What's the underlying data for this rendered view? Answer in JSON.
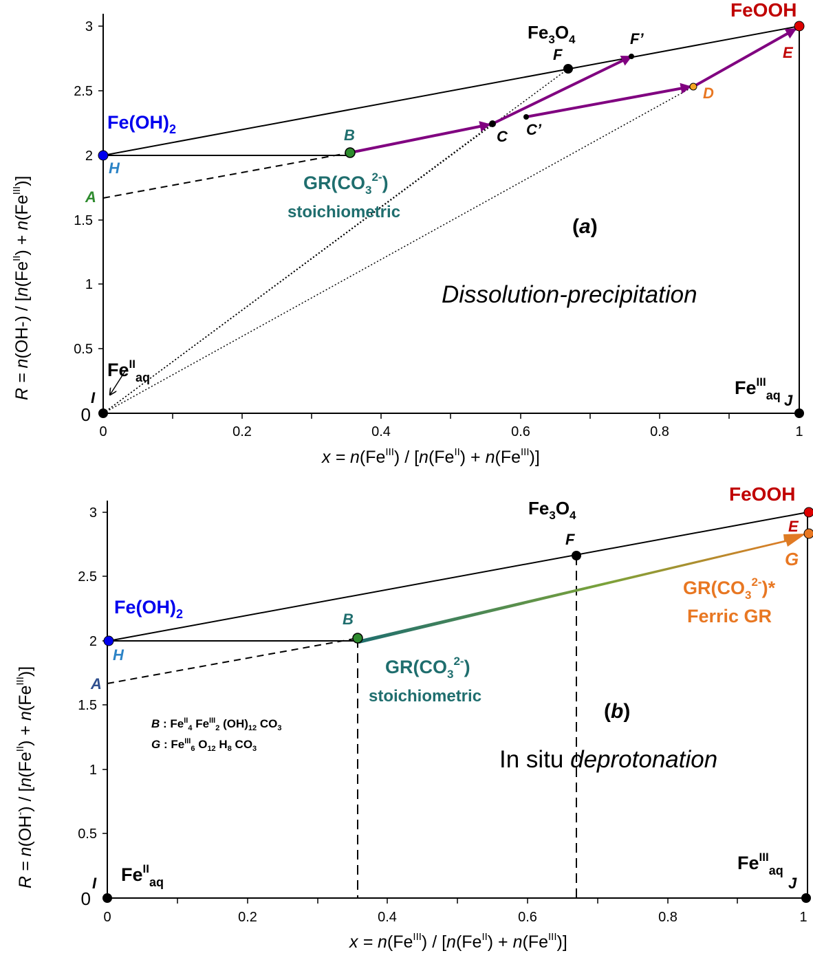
{
  "chart_data": [
    {
      "panel": "a",
      "type": "scatter",
      "title": "",
      "panel_label": "(a)",
      "mechanism": "Dissolution-precipitation",
      "xlabel": {
        "pre": "x = ",
        "n1": "n",
        "fe1": "(Fe",
        "sup1": "III",
        "mid": ") / [",
        "n2": "n",
        "fe2": "(Fe",
        "sup2": "II",
        "plus": ") + ",
        "n3": "n",
        "fe3": "(Fe",
        "sup3": "III",
        "end": ")]"
      },
      "ylabel": {
        "pre": "R = ",
        "n1": "n",
        "oh": "(OH-)",
        "mid": "  /  [",
        "n2": "n",
        "fe2": "(Fe",
        "sup2": "II",
        "plus": ") + ",
        "n3": "n",
        "fe3": "(Fe",
        "sup3": "III",
        "end": ")]"
      },
      "xlim": [
        0,
        1
      ],
      "ylim": [
        0,
        3.1
      ],
      "xticks": [
        "0",
        "0.2",
        "0.4",
        "0.6",
        "0.8",
        "1"
      ],
      "yticks": [
        "0",
        "0.5",
        "1",
        "1.5",
        "2",
        "2.5",
        "3"
      ],
      "points": [
        {
          "label": "H",
          "x": 0,
          "y": 2,
          "color": "#0000ee",
          "name": "Fe(OH)",
          "name_sub": "2"
        },
        {
          "label": "B",
          "x": 0.355,
          "y": 2.02,
          "color": "#2e8b2e",
          "name": "GR(CO",
          "name_sub": "3",
          "name_sup": "2-",
          "name_end": ")",
          "note": "stoichiometric"
        },
        {
          "label": "C",
          "x": 0.56,
          "y": 2.25,
          "color": "#000000"
        },
        {
          "label": "C’",
          "x": 0.607,
          "y": 2.3,
          "color": "#000000"
        },
        {
          "label": "D",
          "x": 0.848,
          "y": 2.53,
          "color": "#f5a623"
        },
        {
          "label": "E",
          "x": 1,
          "y": 3,
          "color": "#dd0000",
          "name": "FeOOH"
        },
        {
          "label": "F",
          "x": 0.667,
          "y": 2.67,
          "color": "#000000",
          "name": "Fe",
          "name_sub": "3",
          "name_mid": "O",
          "name_sub2": "4"
        },
        {
          "label": "F’",
          "x": 0.757,
          "y": 2.76,
          "color": "#000000"
        },
        {
          "label": "A",
          "x": 0,
          "y": 1.67,
          "color": "#2e8b2e"
        },
        {
          "label": "I",
          "x": 0,
          "y": 0,
          "color": "#000000",
          "name": "Fe",
          "name_sup": "II",
          "name_sub": "aq"
        },
        {
          "label": "J",
          "x": 1,
          "y": 0,
          "color": "#000000",
          "name": "Fe",
          "name_sup": "III",
          "name_sub": "aq"
        }
      ]
    },
    {
      "panel": "b",
      "type": "scatter",
      "title": "",
      "panel_label": "(b)",
      "mechanism_pre": "In situ ",
      "mechanism_it": "deprotonation",
      "xlabel": {
        "pre": "x = ",
        "n1": "n",
        "fe1": "(Fe",
        "sup1": "III",
        "mid": ") / [",
        "n2": "n",
        "fe2": "(Fe",
        "sup2": "II",
        "plus": ") + ",
        "n3": "n",
        "fe3": "(Fe",
        "sup3": "III",
        "end": ")]"
      },
      "ylabel": {
        "pre": "R = ",
        "n1": "n",
        "oh": "(OH",
        "sup_oh": "-",
        "oh_end": ")",
        "mid": "  /  [",
        "n2": "n",
        "fe2": "(Fe",
        "sup2": "II",
        "plus": ") + ",
        "n3": "n",
        "fe3": "(Fe",
        "sup3": "III",
        "end": ")]"
      },
      "xlim": [
        0,
        1
      ],
      "ylim": [
        0,
        3.1
      ],
      "xticks": [
        "0",
        "0.2",
        "0.4",
        "0.6",
        "0.8",
        "1"
      ],
      "yticks": [
        "0",
        "0.5",
        "1",
        "1.5",
        "2",
        "2.5",
        "3"
      ],
      "points": [
        {
          "label": "H",
          "x": 0,
          "y": 2,
          "color": "#0000ee",
          "name": "Fe(OH)",
          "name_sub": "2"
        },
        {
          "label": "B",
          "x": 0.36,
          "y": 2.02,
          "color": "#2e8b2e",
          "name": "GR(CO",
          "name_sub": "3",
          "name_sup": "2-",
          "name_end": ")",
          "note": "stoichiometric"
        },
        {
          "label": "E",
          "x": 1,
          "y": 3,
          "color": "#dd0000",
          "name": "FeOOH"
        },
        {
          "label": "F",
          "x": 0.672,
          "y": 2.67,
          "color": "#000000",
          "name": "Fe",
          "name_sub": "3",
          "name_mid": "O",
          "name_sub2": "4"
        },
        {
          "label": "G",
          "x": 1,
          "y": 2.67,
          "color": "#e87722",
          "name": "GR(CO",
          "name_sub": "3",
          "name_sup": "2-",
          "name_end": ")*",
          "note": "Ferric GR"
        },
        {
          "label": "A",
          "x": 0,
          "y": 1.67,
          "color": "#2f4f8f"
        },
        {
          "label": "I",
          "x": 0,
          "y": 0,
          "color": "#000000",
          "name": "Fe",
          "name_sup": "II",
          "name_sub": "aq"
        },
        {
          "label": "J",
          "x": 1,
          "y": 0,
          "color": "#000000",
          "name": "Fe",
          "name_sup": "III",
          "name_sub": "aq"
        }
      ],
      "formulas": [
        {
          "lbl": "B",
          "colon": " : ",
          "t1": "Fe",
          "s1": "II",
          "b1": "4",
          "t2": " Fe",
          "s2": "III",
          "b2": "2",
          "t3": " (OH)",
          "b3": "12",
          "t4": " CO",
          "b4": "3"
        },
        {
          "lbl": "G",
          "colon": " : ",
          "t1": "Fe",
          "s1": "III",
          "b1": "6",
          "t2": " O",
          "b2": "12",
          "t3": " H",
          "b3": "8",
          "t4": " CO",
          "b4": "3"
        }
      ]
    }
  ]
}
